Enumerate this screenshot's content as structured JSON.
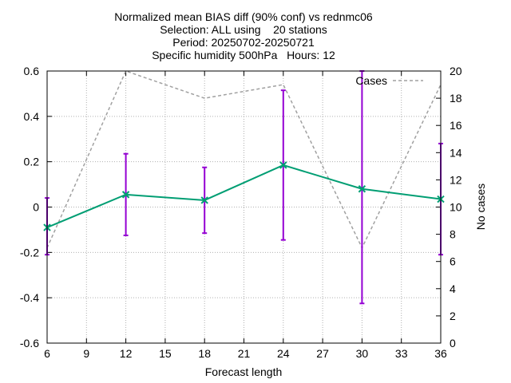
{
  "chart_data": {
    "type": "line",
    "title_lines": [
      "Normalized mean BIAS diff (90% conf) vs rednmc06",
      "Selection: ALL using    20 stations",
      "Period: 20250702-20250721",
      "Specific humidity 500hPa   Hours: 12"
    ],
    "xlabel": "Forecast length",
    "ylabel": "",
    "y2label": "No cases",
    "xlim": [
      6,
      36
    ],
    "ylim": [
      -0.6,
      0.6
    ],
    "y2lim": [
      0,
      20
    ],
    "xticks": [
      6,
      9,
      12,
      15,
      18,
      21,
      24,
      27,
      30,
      33,
      36
    ],
    "yticks": [
      -0.6,
      -0.4,
      -0.2,
      0,
      0.2,
      0.4,
      0.6
    ],
    "ytick_labels": [
      "-0.6",
      "-0.4",
      "-0.2",
      "0",
      "0.2",
      "0.4",
      "0.6"
    ],
    "y2ticks": [
      0,
      2,
      4,
      6,
      8,
      10,
      12,
      14,
      16,
      18,
      20
    ],
    "grid": true,
    "legend_position": "top-right",
    "x": [
      6,
      12,
      18,
      24,
      30,
      36
    ],
    "series": [
      {
        "values": [
          -0.09,
          0.055,
          0.03,
          0.185,
          0.08,
          0.035
        ],
        "err_low": [
          -0.21,
          -0.125,
          -0.115,
          -0.145,
          -0.425,
          -0.21
        ],
        "err_high": [
          0.04,
          0.235,
          0.175,
          0.515,
          0.6,
          0.28
        ],
        "color": "#009e73",
        "error_color": "#9400d3"
      },
      {
        "name": "Cases",
        "axis": "y2",
        "values": [
          7,
          20,
          18,
          19,
          7,
          19
        ],
        "color": "#a0a0a0",
        "dashed": true
      }
    ]
  }
}
